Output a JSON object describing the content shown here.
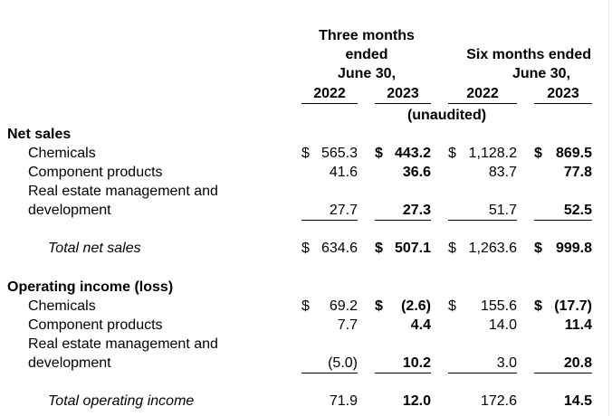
{
  "header": {
    "three_months": [
      "Three months",
      "ended",
      "June 30,"
    ],
    "six_months": [
      "Six months ended",
      "June 30,"
    ],
    "years": [
      "2022",
      "2023",
      "2022",
      "2023"
    ],
    "unaudited": "(unaudited)"
  },
  "net_sales": {
    "title": "Net sales",
    "rows": [
      {
        "label": [
          "Chemicals"
        ],
        "cur3": "$",
        "v3a": "565.3",
        "cur3b": "$",
        "v3b": "443.2",
        "cur6": "$",
        "v6a": "1,128.2",
        "cur6b": "$",
        "v6b": "869.5"
      },
      {
        "label": [
          "Component products"
        ],
        "cur3": "",
        "v3a": "41.6",
        "cur3b": "",
        "v3b": "36.6",
        "cur6": "",
        "v6a": "83.7",
        "cur6b": "",
        "v6b": "77.8"
      },
      {
        "label": [
          "Real estate management and",
          "development"
        ],
        "cur3": "",
        "v3a": "27.7",
        "cur3b": "",
        "v3b": "27.3",
        "cur6": "",
        "v6a": "51.7",
        "cur6b": "",
        "v6b": "52.5"
      }
    ],
    "total": {
      "label": "Total net sales",
      "cur3": "$",
      "v3a": "634.6",
      "cur3b": "$",
      "v3b": "507.1",
      "cur6": "$",
      "v6a": "1,263.6",
      "cur6b": "$",
      "v6b": "999.8"
    }
  },
  "operating_income": {
    "title": "Operating income (loss)",
    "rows": [
      {
        "label": [
          "Chemicals"
        ],
        "cur3": "$",
        "v3a": "69.2",
        "cur3b": "$",
        "v3b": "(2.6)",
        "cur6": "$",
        "v6a": "155.6",
        "cur6b": "$",
        "v6b": "(17.7)"
      },
      {
        "label": [
          "Component products"
        ],
        "cur3": "",
        "v3a": "7.7",
        "cur3b": "",
        "v3b": "4.4",
        "cur6": "",
        "v6a": "14.0",
        "cur6b": "",
        "v6b": "11.4"
      },
      {
        "label": [
          "Real estate management and",
          "development"
        ],
        "cur3": "",
        "v3a": "(5.0)",
        "cur3b": "",
        "v3b": "10.2",
        "cur6": "",
        "v6a": "3.0",
        "cur6b": "",
        "v6b": "20.8"
      }
    ],
    "total": {
      "label": "Total operating income",
      "cur3": "",
      "v3a": "71.9",
      "cur3b": "",
      "v3b": "12.0",
      "cur6": "",
      "v6a": "172.6",
      "cur6b": "",
      "v6b": "14.5"
    }
  }
}
